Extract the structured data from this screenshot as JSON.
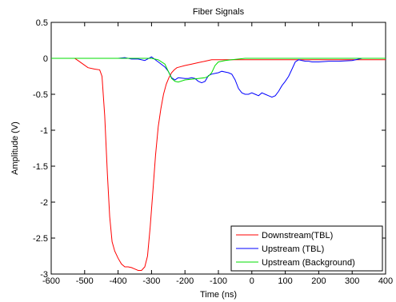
{
  "chart_data": {
    "type": "line",
    "title": "Fiber Signals",
    "xlabel": "Time (ns)",
    "ylabel": "Amplitude (V)",
    "xlim": [
      -600,
      400
    ],
    "ylim": [
      -3,
      0.5
    ],
    "xticks": [
      -600,
      -500,
      -400,
      -300,
      -200,
      -100,
      0,
      100,
      200,
      300,
      400
    ],
    "yticks": [
      0.5,
      0,
      -0.5,
      -1,
      -1.5,
      -2,
      -2.5,
      -3
    ],
    "xtick_labels": [
      "-600",
      "-500",
      "-400",
      "-300",
      "-200",
      "-100",
      "0",
      "100",
      "200",
      "300",
      "400"
    ],
    "ytick_labels": [
      "0.5",
      "0",
      "-0.5",
      "-1",
      "-1.5",
      "-2",
      "-2.5",
      "-3"
    ],
    "grid": false,
    "legend_position": "bottom-right",
    "series": [
      {
        "name": "Downstream(TBL)",
        "color": "#ff0000",
        "x": [
          -600,
          -530,
          -520,
          -505,
          -490,
          -470,
          -455,
          -448,
          -440,
          -432,
          -425,
          -418,
          -410,
          -400,
          -390,
          -380,
          -370,
          -360,
          -350,
          -340,
          -330,
          -320,
          -312,
          -304,
          -296,
          -288,
          -280,
          -272,
          -264,
          -256,
          -248,
          -240,
          -232,
          -224,
          -216,
          -200,
          -180,
          -160,
          -140,
          -120,
          -100,
          400
        ],
        "y": [
          0,
          0,
          -0.03,
          -0.08,
          -0.13,
          -0.15,
          -0.16,
          -0.25,
          -0.8,
          -1.6,
          -2.2,
          -2.55,
          -2.68,
          -2.78,
          -2.86,
          -2.9,
          -2.9,
          -2.91,
          -2.93,
          -2.95,
          -2.95,
          -2.9,
          -2.75,
          -2.35,
          -1.85,
          -1.35,
          -0.95,
          -0.7,
          -0.5,
          -0.36,
          -0.27,
          -0.2,
          -0.16,
          -0.13,
          -0.12,
          -0.1,
          -0.08,
          -0.06,
          -0.04,
          -0.02,
          -0.02,
          -0.02
        ]
      },
      {
        "name": "Upstream (TBL)",
        "color": "#0000ff",
        "x": [
          -600,
          -400,
          -380,
          -360,
          -340,
          -320,
          -300,
          -280,
          -260,
          -250,
          -240,
          -230,
          -220,
          -200,
          -190,
          -180,
          -170,
          -160,
          -150,
          -140,
          -130,
          -120,
          -110,
          -100,
          -90,
          -80,
          -70,
          -60,
          -50,
          -40,
          -30,
          -20,
          -10,
          0,
          10,
          20,
          30,
          40,
          50,
          60,
          70,
          80,
          90,
          100,
          110,
          120,
          130,
          140,
          150,
          160,
          170,
          180,
          200,
          230,
          260,
          300,
          330,
          400
        ],
        "y": [
          0,
          0,
          0.01,
          -0.01,
          -0.01,
          -0.03,
          0.02,
          -0.05,
          -0.12,
          -0.18,
          -0.27,
          -0.3,
          -0.27,
          -0.28,
          -0.28,
          -0.27,
          -0.28,
          -0.32,
          -0.34,
          -0.32,
          -0.24,
          -0.22,
          -0.21,
          -0.2,
          -0.18,
          -0.19,
          -0.2,
          -0.22,
          -0.3,
          -0.42,
          -0.48,
          -0.5,
          -0.5,
          -0.48,
          -0.5,
          -0.52,
          -0.48,
          -0.5,
          -0.52,
          -0.54,
          -0.52,
          -0.46,
          -0.38,
          -0.32,
          -0.25,
          -0.15,
          -0.05,
          -0.02,
          -0.03,
          -0.04,
          -0.04,
          -0.05,
          -0.05,
          -0.04,
          -0.04,
          -0.03,
          0,
          0
        ]
      },
      {
        "name": "Upstream (Background)",
        "color": "#00dd00",
        "x": [
          -600,
          -300,
          -280,
          -260,
          -250,
          -240,
          -230,
          -220,
          -200,
          -180,
          -160,
          -140,
          -130,
          -120,
          -110,
          -100,
          -80,
          -60,
          -40,
          -20,
          0,
          100,
          200,
          300,
          400
        ],
        "y": [
          0,
          0,
          -0.02,
          -0.08,
          -0.18,
          -0.28,
          -0.32,
          -0.33,
          -0.3,
          -0.29,
          -0.28,
          -0.27,
          -0.25,
          -0.2,
          -0.1,
          -0.05,
          -0.03,
          -0.02,
          -0.01,
          0,
          0,
          0,
          0,
          0,
          0
        ]
      }
    ]
  }
}
